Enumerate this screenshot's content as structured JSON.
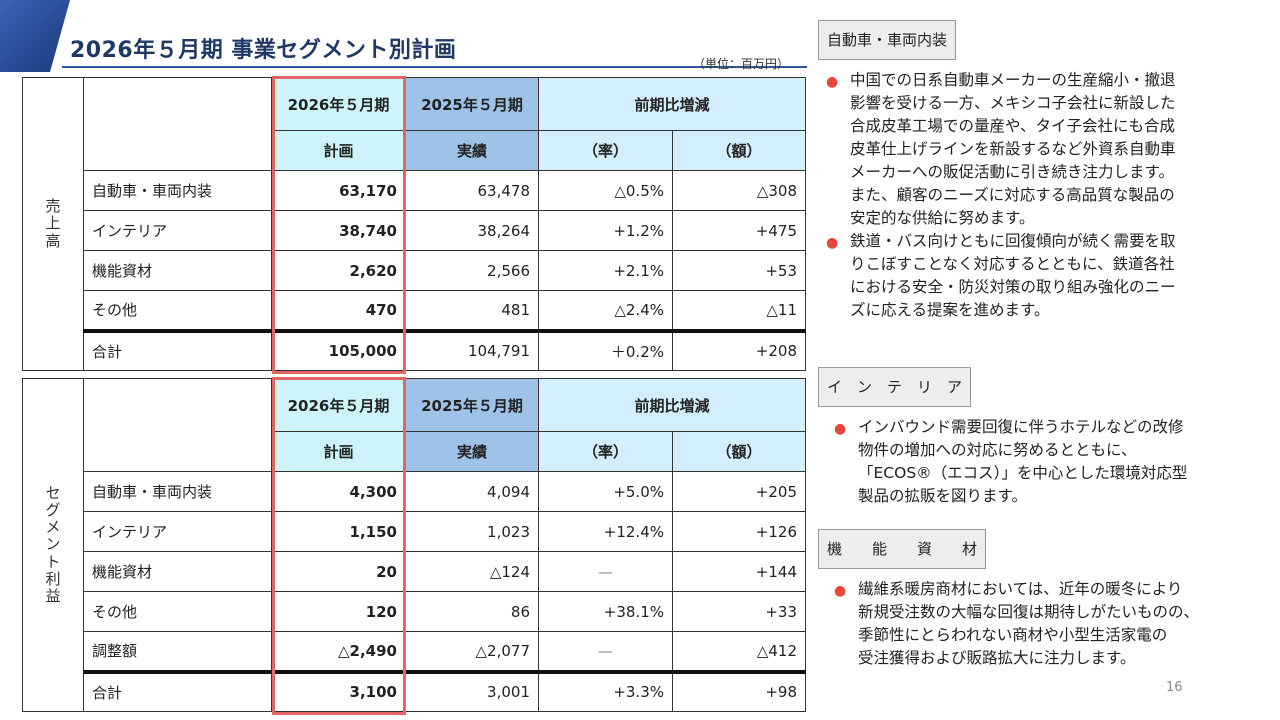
{
  "title": "2026年５月期 事業セグメント別計画",
  "unit": "（単位：百万円）",
  "page_number": "16",
  "headers": {
    "plan_year": "2026年５月期",
    "actual_year": "2025年５月期",
    "yoy": "前期比増減",
    "plan": "計画",
    "actual": "実績",
    "rate": "（率）",
    "amount": "（額）"
  },
  "sales": {
    "side_label": [
      "売",
      "上",
      "高"
    ],
    "rows": [
      {
        "label": "自動車・車両内装",
        "plan": "63,170",
        "actual": "63,478",
        "rate": "△0.5%",
        "amount": "△308"
      },
      {
        "label": "インテリア",
        "plan": "38,740",
        "actual": "38,264",
        "rate": "+1.2%",
        "amount": "+475"
      },
      {
        "label": "機能資材",
        "plan": "2,620",
        "actual": "2,566",
        "rate": "+2.1%",
        "amount": "+53"
      },
      {
        "label": "その他",
        "plan": "470",
        "actual": "481",
        "rate": "△2.4%",
        "amount": "△11"
      }
    ],
    "total": {
      "label": "合計",
      "plan": "105,000",
      "actual": "104,791",
      "rate": "＋0.2%",
      "amount": "+208"
    }
  },
  "profit": {
    "side_label": [
      "セ",
      "グ",
      "メ",
      "ン",
      "ト",
      "利",
      "益"
    ],
    "rows": [
      {
        "label": "自動車・車両内装",
        "plan": "4,300",
        "actual": "4,094",
        "rate": "+5.0%",
        "amount": "+205"
      },
      {
        "label": "インテリア",
        "plan": "1,150",
        "actual": "1,023",
        "rate": "+12.4%",
        "amount": "+126"
      },
      {
        "label": "機能資材",
        "plan": "20",
        "actual": "△124",
        "rate": "—",
        "amount": "+144"
      },
      {
        "label": "その他",
        "plan": "120",
        "actual": "86",
        "rate": "+38.1%",
        "amount": "+33"
      },
      {
        "label": "調整額",
        "plan": "△2,490",
        "actual": "△2,077",
        "rate": "—",
        "amount": "△412"
      }
    ],
    "total": {
      "label": "合計",
      "plan": "3,100",
      "actual": "3,001",
      "rate": "+3.3%",
      "amount": "+98"
    }
  },
  "sections": [
    {
      "heading": "自動車・車両内装",
      "bullets": [
        [
          "中国での日系自動車メーカーの生産縮小・撤退",
          "影響を受ける一方、メキシコ子会社に新設した",
          "合成皮革工場での量産や、タイ子会社にも合成",
          "皮革仕上げラインを新設するなど外資系自動車",
          "メーカーへの販促活動に引き続き注力します。",
          "また、顧客のニーズに対応する高品質な製品の",
          "安定的な供給に努めます。"
        ],
        [
          "鉄道・バス向けともに回復傾向が続く需要を取",
          "りこぼすことなく対応するとともに、鉄道各社",
          "における安全・防災対策の取り組み強化のニー",
          "ズに応える提案を進めます。"
        ]
      ]
    },
    {
      "heading": "イ　ン　テ　リ　ア",
      "bullets": [
        [
          "インバウンド需要回復に伴うホテルなどの改修",
          "物件の増加への対応に努めるとともに、",
          "「ECOS®（エコス）」を中心とした環境対応型",
          "製品の拡販を図ります。"
        ]
      ]
    },
    {
      "heading": "機　　能　　資　　材",
      "bullets": [
        [
          "繊維系暖房商材においては、近年の暖冬により",
          "新規受注数の大幅な回復は期待しがたいものの、",
          "季節性にとらわれない商材や小型生活家電の",
          "受注獲得および販路拡大に注力します。"
        ]
      ]
    }
  ],
  "colors": {
    "accent": "#2e5597",
    "plan_frame": "#e06666",
    "bullet": "#e8453c"
  }
}
